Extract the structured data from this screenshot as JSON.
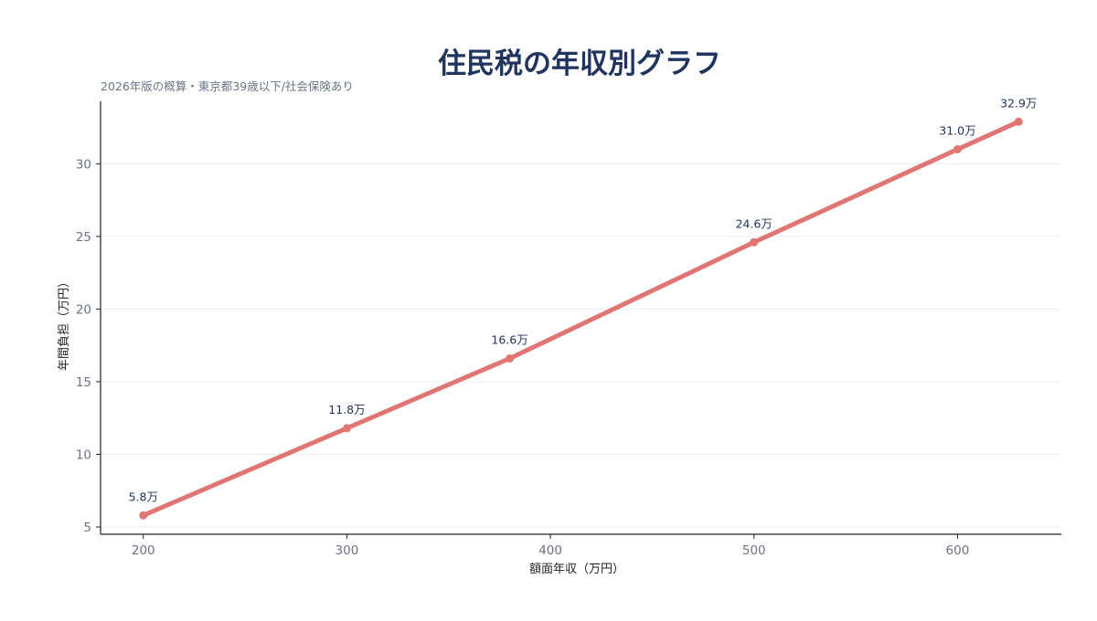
{
  "chart_data": {
    "type": "line",
    "title": "住民税の年収別グラフ",
    "subtitle": "2026年版の概算・東京都39歳以下/社会保険あり",
    "xlabel": "額面年収（万円）",
    "ylabel": "年間負担（万円）",
    "x": [
      200,
      300,
      380,
      500,
      600,
      630
    ],
    "values": [
      5.8,
      11.8,
      16.6,
      24.6,
      31.0,
      32.9
    ],
    "data_labels": [
      "5.8万",
      "11.8万",
      "16.6万",
      "24.6万",
      "31.0万",
      "32.9万"
    ],
    "xticks": [
      200,
      300,
      400,
      500,
      600
    ],
    "xtick_labels": [
      "200",
      "300",
      "400",
      "500",
      "600"
    ],
    "yticks": [
      5,
      10,
      15,
      20,
      25,
      30
    ],
    "ytick_labels": [
      "5",
      "10",
      "15",
      "20",
      "25",
      "30"
    ],
    "xlim": [
      179,
      651
    ],
    "ylim": [
      4.5,
      34.3
    ],
    "grid": "horizontal",
    "colors": {
      "line": "#e07674",
      "title": "#22345e",
      "label": "#22345e",
      "tick": "#6b7385"
    }
  }
}
